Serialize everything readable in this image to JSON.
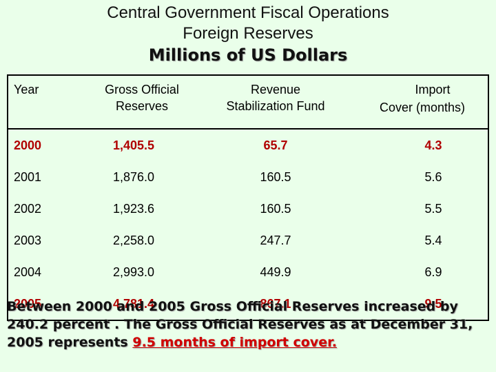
{
  "title": {
    "line1": "Central Government Fiscal Operations",
    "line2": "Foreign Reserves",
    "line3": "Millions of US Dollars"
  },
  "table": {
    "headers": {
      "year": "Year",
      "gross_l1": "Gross Official",
      "gross_l2": "Reserves",
      "rsf_l1": "Revenue",
      "rsf_l2": "Stabilization Fund",
      "imp_l1": "Import",
      "imp_l2": "Cover (months)"
    },
    "rows": [
      {
        "year": "2000",
        "gross": "1,405.5",
        "rsf": "65.7",
        "imp": "4.3"
      },
      {
        "year": "2001",
        "gross": "1,876.0",
        "rsf": "160.5",
        "imp": "5.6"
      },
      {
        "year": "2002",
        "gross": "1,923.6",
        "rsf": "160.5",
        "imp": "5.5"
      },
      {
        "year": "2003",
        "gross": "2,258.0",
        "rsf": "247.7",
        "imp": "5.4"
      },
      {
        "year": "2004",
        "gross": "2,993.0",
        "rsf": "449.9",
        "imp": "6.9"
      },
      {
        "year": "2005",
        "gross": "4,781.4",
        "rsf": "867.1",
        "imp": "9.5"
      }
    ]
  },
  "summary": {
    "text": "Between 2000 and 2005 Gross Official Reserves increased by 240.2 percent . The Gross Official Reserves as at December 31, 2005 represents ",
    "highlight": "9.5 months of import cover."
  },
  "colors": {
    "background": "#eaffea",
    "highlight": "#d00000",
    "red_rows": "#b00000"
  }
}
